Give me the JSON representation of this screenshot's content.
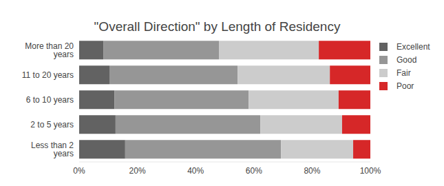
{
  "chart_data": {
    "type": "bar",
    "title": "\"Overall Direction\" by Length of Residency",
    "orientation": "horizontal",
    "stacked": true,
    "grid": false,
    "legend": "right",
    "categories": [
      "More than 20 years",
      "11 to 20 years",
      "6 to 10 years",
      "2 to 5 years",
      "Less than 2 years"
    ],
    "series": [
      {
        "name": "Excellent",
        "color": "#626262",
        "values": [
          8.3,
          10.4,
          12.1,
          12.5,
          15.8
        ]
      },
      {
        "name": "Good",
        "color": "#969696",
        "values": [
          39.7,
          44.0,
          46.1,
          49.7,
          53.5
        ]
      },
      {
        "name": "Fair",
        "color": "#cccccc",
        "values": [
          34.3,
          31.7,
          30.9,
          28.1,
          24.8
        ]
      },
      {
        "name": "Poor",
        "color": "#d62728",
        "values": [
          17.7,
          13.9,
          10.9,
          9.7,
          5.9
        ]
      }
    ],
    "xlim": [
      0,
      100
    ],
    "xticks": [
      {
        "value": 0,
        "label": "0%"
      },
      {
        "value": 20,
        "label": "20%"
      },
      {
        "value": 40,
        "label": "40%"
      },
      {
        "value": 60,
        "label": "60%"
      },
      {
        "value": 80,
        "label": "80%"
      },
      {
        "value": 100,
        "label": "100%"
      }
    ]
  }
}
